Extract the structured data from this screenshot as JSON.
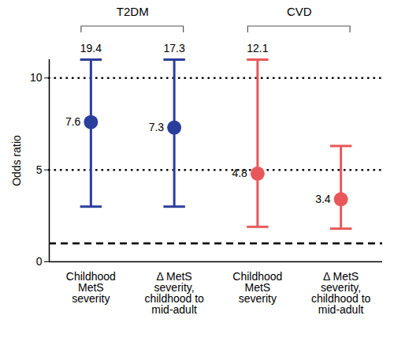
{
  "chart_data": {
    "type": "errorbar",
    "ylabel": "Odds ratio",
    "categories": [
      "Childhood MetS severity",
      "Δ MetS severity, childhood to mid-adult",
      "Childhood MetS severity",
      "Δ MetS severity, childhood to mid-adult"
    ],
    "series": [
      {
        "name": "T2DM",
        "color": "#2c3e9c",
        "values": [
          7.6,
          7.3,
          null,
          null
        ],
        "lower": [
          3.0,
          3.0,
          null,
          null
        ],
        "upper": [
          19.4,
          17.3,
          null,
          null
        ]
      },
      {
        "name": "CVD",
        "color": "#e8585a",
        "values": [
          null,
          null,
          4.8,
          3.4
        ],
        "lower": [
          null,
          null,
          1.9,
          1.8
        ],
        "upper": [
          null,
          null,
          12.1,
          6.3
        ]
      }
    ],
    "reference_line": 1,
    "ylim": [
      0,
      11
    ],
    "yticks": [
      0,
      5,
      10
    ],
    "grid": true,
    "data_labels": true,
    "marker": "circle"
  }
}
